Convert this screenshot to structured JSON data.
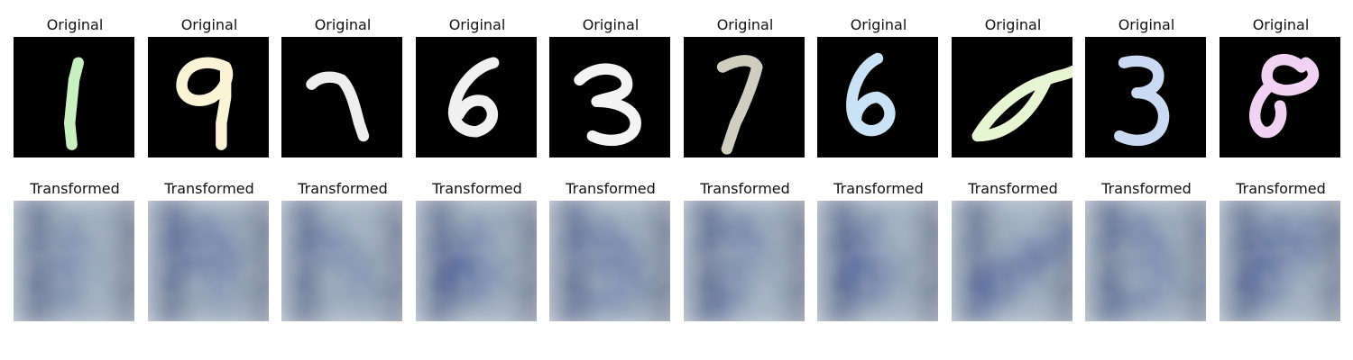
{
  "figure": {
    "top_label": "Original",
    "bottom_label": "Transformed",
    "samples": [
      {
        "digit": "1",
        "original_color": "#c8f0c0",
        "transformed_icon": "svhn-like-digit"
      },
      {
        "digit": "9",
        "original_color": "#fbf3d6",
        "transformed_icon": "svhn-like-digit"
      },
      {
        "digit": "7",
        "original_color": "#eeeeee",
        "transformed_icon": "svhn-like-digit"
      },
      {
        "digit": "6",
        "original_color": "#f0f0f0",
        "transformed_icon": "svhn-like-digit"
      },
      {
        "digit": "3",
        "original_color": "#f4f4f4",
        "transformed_icon": "svhn-like-digit"
      },
      {
        "digit": "7",
        "original_color": "#cfcfc0",
        "transformed_icon": "svhn-like-digit"
      },
      {
        "digit": "6",
        "original_color": "#c9e2f5",
        "transformed_icon": "svhn-like-digit"
      },
      {
        "digit": "0",
        "original_color": "#e6f5d2",
        "transformed_icon": "svhn-like-digit"
      },
      {
        "digit": "3",
        "original_color": "#c9daf2",
        "transformed_icon": "svhn-like-digit"
      },
      {
        "digit": "8",
        "original_color": "#f2d2f2",
        "transformed_icon": "svhn-like-digit"
      }
    ]
  }
}
